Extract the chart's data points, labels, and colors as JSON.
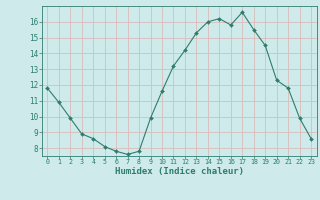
{
  "x": [
    0,
    1,
    2,
    3,
    4,
    5,
    6,
    7,
    8,
    9,
    10,
    11,
    12,
    13,
    14,
    15,
    16,
    17,
    18,
    19,
    20,
    21,
    22,
    23
  ],
  "y": [
    11.8,
    10.9,
    9.9,
    8.9,
    8.6,
    8.1,
    7.8,
    7.6,
    7.8,
    9.9,
    11.6,
    13.2,
    14.2,
    15.3,
    16.0,
    16.2,
    15.8,
    16.6,
    15.5,
    14.5,
    12.3,
    11.8,
    9.9,
    8.6
  ],
  "xlabel": "Humidex (Indice chaleur)",
  "ylim": [
    7.5,
    17.0
  ],
  "xlim": [
    -0.5,
    23.5
  ],
  "yticks": [
    8,
    9,
    10,
    11,
    12,
    13,
    14,
    15,
    16
  ],
  "xticks": [
    0,
    1,
    2,
    3,
    4,
    5,
    6,
    7,
    8,
    9,
    10,
    11,
    12,
    13,
    14,
    15,
    16,
    17,
    18,
    19,
    20,
    21,
    22,
    23
  ],
  "line_color": "#2e7d6e",
  "marker_color": "#2e7d6e",
  "bg_color": "#ceeaea",
  "grid_color": "#dbbcbc",
  "axis_color": "#2e7d6e",
  "label_color": "#2e7d6e"
}
